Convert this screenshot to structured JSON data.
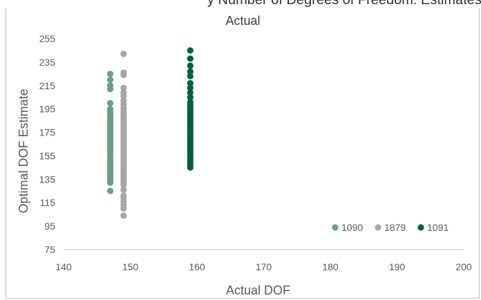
{
  "top_cut_text": "y Number of Degrees of Freedom: Estimates and Actual vs Average",
  "chart_data": {
    "type": "scatter",
    "title": "Actual",
    "xlabel": "Actual DOF",
    "ylabel": "Optimal DOF Estimate",
    "xlim": [
      140,
      200
    ],
    "ylim": [
      75,
      255
    ],
    "x_ticks": [
      "140",
      "150",
      "160",
      "170",
      "180",
      "190",
      "200"
    ],
    "y_ticks": [
      "75",
      "95",
      "115",
      "135",
      "155",
      "175",
      "195",
      "215",
      "235",
      "255"
    ],
    "grid": "none",
    "legend_position": "bottom-right",
    "series": [
      {
        "name": "1090",
        "color": "#6b9e84",
        "x": [
          147,
          147,
          147,
          147,
          147,
          147,
          147,
          147,
          147,
          147,
          147,
          147,
          147,
          147,
          147,
          147,
          147,
          147,
          147,
          147,
          147,
          147,
          147,
          147,
          147,
          147,
          147,
          147,
          147,
          147,
          147,
          147,
          147,
          147,
          147,
          147,
          147,
          147,
          147,
          147
        ],
        "y": [
          125,
          132,
          135,
          137,
          139,
          141,
          143,
          145,
          147,
          149,
          151,
          153,
          155,
          157,
          159,
          161,
          163,
          165,
          167,
          169,
          171,
          173,
          175,
          177,
          179,
          181,
          183,
          185,
          187,
          189,
          191,
          193,
          195,
          200,
          212,
          215,
          220,
          225,
          134,
          168
        ]
      },
      {
        "name": "1879",
        "color": "#a6a6a6",
        "x": [
          149,
          149,
          149,
          149,
          149,
          149,
          149,
          149,
          149,
          149,
          149,
          149,
          149,
          149,
          149,
          149,
          149,
          149,
          149,
          149,
          149,
          149,
          149,
          149,
          149,
          149,
          149,
          149,
          149,
          149,
          149,
          149,
          149,
          149,
          149,
          149,
          149,
          149,
          149,
          149,
          149,
          149,
          149,
          149,
          149,
          149,
          149,
          149,
          149
        ],
        "y": [
          104,
          110,
          113,
          116,
          119,
          121,
          126,
          130,
          132,
          134,
          136,
          138,
          140,
          142,
          144,
          146,
          148,
          150,
          152,
          154,
          156,
          158,
          160,
          162,
          164,
          166,
          168,
          170,
          172,
          174,
          176,
          178,
          180,
          182,
          184,
          186,
          188,
          190,
          192,
          194,
          196,
          199,
          202,
          206,
          209,
          213,
          224,
          226,
          242
        ]
      },
      {
        "name": "1091",
        "color": "#00613f",
        "x": [
          159,
          159,
          159,
          159,
          159,
          159,
          159,
          159,
          159,
          159,
          159,
          159,
          159,
          159,
          159,
          159,
          159,
          159,
          159,
          159,
          159,
          159,
          159,
          159,
          159,
          159,
          159,
          159,
          159,
          159,
          159,
          159,
          159,
          159,
          159,
          159,
          159,
          159
        ],
        "y": [
          145,
          147,
          149,
          151,
          153,
          155,
          157,
          159,
          161,
          163,
          165,
          167,
          169,
          171,
          173,
          175,
          177,
          179,
          181,
          183,
          185,
          187,
          189,
          191,
          193,
          195,
          197,
          199,
          201,
          205,
          209,
          213,
          217,
          223,
          227,
          232,
          238,
          245
        ]
      }
    ]
  }
}
